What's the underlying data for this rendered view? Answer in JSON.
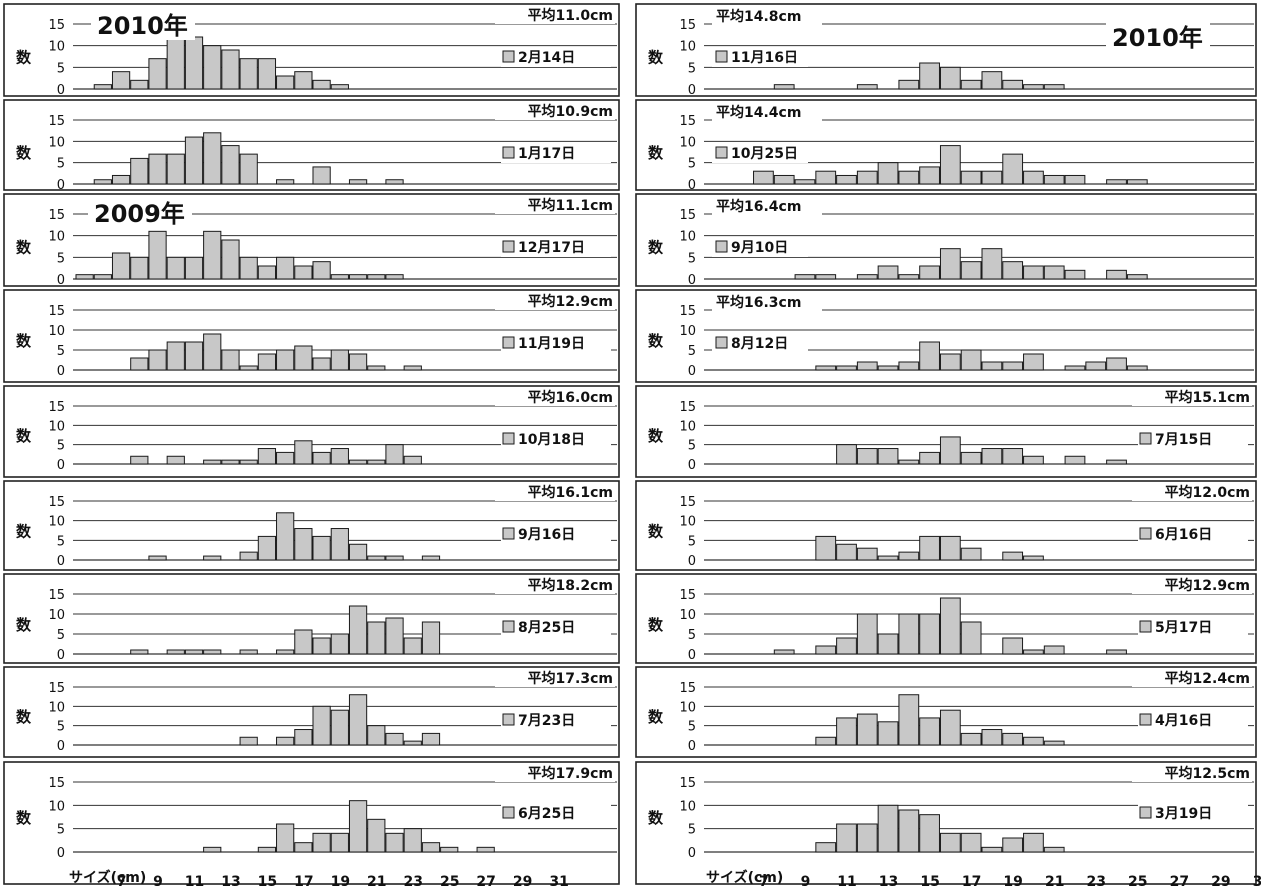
{
  "figure": {
    "ylabel": "数",
    "xaxis_title": "サイズ(cm)",
    "y_ticks": [
      "15",
      "10",
      "5",
      "0"
    ],
    "x_ticks": [
      "7",
      "9",
      "11",
      "13",
      "15",
      "17",
      "19",
      "21",
      "23",
      "25",
      "27",
      "29",
      "31"
    ],
    "bar_color": "#c8c8c8"
  },
  "chart_data": [
    {
      "type": "bar",
      "date": "2月14日",
      "mean": "平均11.0cm",
      "year": "2010年",
      "ylim": [
        0,
        15
      ],
      "x": [
        6,
        7,
        8,
        9,
        10,
        11,
        12,
        13,
        14,
        15,
        16,
        17,
        18,
        19
      ],
      "values": [
        1,
        4,
        2,
        7,
        12,
        12,
        10,
        9,
        7,
        7,
        3,
        4,
        2,
        1
      ]
    },
    {
      "type": "bar",
      "date": "1月17日",
      "mean": "平均10.9cm",
      "ylim": [
        0,
        15
      ],
      "x": [
        6,
        7,
        8,
        9,
        10,
        11,
        12,
        13,
        14,
        16,
        18,
        20,
        22
      ],
      "values": [
        1,
        2,
        6,
        7,
        7,
        11,
        12,
        9,
        7,
        1,
        4,
        1,
        1
      ]
    },
    {
      "type": "bar",
      "date": "12月17日",
      "mean": "平均11.1cm",
      "year": "2009年",
      "ylim": [
        0,
        15
      ],
      "x": [
        5,
        6,
        7,
        8,
        9,
        10,
        11,
        12,
        13,
        14,
        15,
        16,
        17,
        18,
        19,
        20,
        21,
        22
      ],
      "values": [
        1,
        1,
        6,
        5,
        11,
        5,
        5,
        11,
        9,
        5,
        3,
        5,
        3,
        4,
        1,
        1,
        1,
        1
      ]
    },
    {
      "type": "bar",
      "date": "11月19日",
      "mean": "平均12.9cm",
      "ylim": [
        0,
        15
      ],
      "x": [
        8,
        9,
        10,
        11,
        12,
        13,
        14,
        15,
        16,
        17,
        18,
        19,
        20,
        21,
        23
      ],
      "values": [
        3,
        5,
        7,
        7,
        9,
        5,
        1,
        4,
        5,
        6,
        3,
        5,
        4,
        1,
        1
      ]
    },
    {
      "type": "bar",
      "date": "10月18日",
      "mean": "平均16.0cm",
      "ylim": [
        0,
        15
      ],
      "x": [
        8,
        10,
        12,
        13,
        14,
        15,
        16,
        17,
        18,
        19,
        20,
        21,
        22,
        23
      ],
      "values": [
        2,
        2,
        1,
        1,
        1,
        4,
        3,
        6,
        3,
        4,
        1,
        1,
        5,
        2
      ]
    },
    {
      "type": "bar",
      "date": "9月16日",
      "mean": "平均16.1cm",
      "ylim": [
        0,
        15
      ],
      "x": [
        9,
        12,
        14,
        15,
        16,
        17,
        18,
        19,
        20,
        21,
        22,
        24
      ],
      "values": [
        1,
        1,
        2,
        6,
        12,
        8,
        6,
        8,
        4,
        1,
        1,
        1
      ]
    },
    {
      "type": "bar",
      "date": "8月25日",
      "mean": "平均18.2cm",
      "ylim": [
        0,
        15
      ],
      "x": [
        8,
        10,
        11,
        12,
        14,
        16,
        17,
        18,
        19,
        20,
        21,
        22,
        23,
        24
      ],
      "values": [
        1,
        1,
        1,
        1,
        1,
        1,
        6,
        4,
        5,
        12,
        8,
        9,
        4,
        8
      ]
    },
    {
      "type": "bar",
      "date": "7月23日",
      "mean": "平均17.3cm",
      "ylim": [
        0,
        15
      ],
      "x": [
        14,
        16,
        17,
        18,
        19,
        20,
        21,
        22,
        23,
        24
      ],
      "values": [
        2,
        2,
        4,
        10,
        9,
        13,
        5,
        3,
        1,
        3
      ]
    },
    {
      "type": "bar",
      "date": "6月25日",
      "mean": "平均17.9cm",
      "ylim": [
        0,
        15
      ],
      "x": [
        12,
        15,
        16,
        17,
        18,
        19,
        20,
        21,
        22,
        23,
        24,
        25,
        27
      ],
      "values": [
        1,
        1,
        6,
        2,
        4,
        4,
        11,
        7,
        4,
        5,
        2,
        1,
        1
      ]
    },
    {
      "type": "bar",
      "date": "11月16日",
      "mean": "平均14.8cm",
      "year": "2010年",
      "ylim": [
        0,
        15
      ],
      "x": [
        8,
        12,
        14,
        15,
        16,
        17,
        18,
        19,
        20,
        21
      ],
      "values": [
        1,
        1,
        2,
        6,
        5,
        2,
        4,
        2,
        1,
        1
      ]
    },
    {
      "type": "bar",
      "date": "10月25日",
      "mean": "平均14.4cm",
      "ylim": [
        0,
        15
      ],
      "x": [
        7,
        8,
        9,
        10,
        11,
        12,
        13,
        14,
        15,
        16,
        17,
        18,
        19,
        20,
        21,
        22,
        24,
        25
      ],
      "values": [
        3,
        2,
        1,
        3,
        2,
        3,
        5,
        3,
        4,
        9,
        3,
        3,
        7,
        3,
        2,
        2,
        1,
        1
      ]
    },
    {
      "type": "bar",
      "date": "9月10日",
      "mean": "平均16.4cm",
      "ylim": [
        0,
        15
      ],
      "x": [
        9,
        10,
        12,
        13,
        14,
        15,
        16,
        17,
        18,
        19,
        20,
        21,
        22,
        24,
        25
      ],
      "values": [
        1,
        1,
        1,
        3,
        1,
        3,
        7,
        4,
        7,
        4,
        3,
        3,
        2,
        2,
        1
      ]
    },
    {
      "type": "bar",
      "date": "8月12日",
      "mean": "平均16.3cm",
      "ylim": [
        0,
        15
      ],
      "x": [
        10,
        11,
        12,
        13,
        14,
        15,
        16,
        17,
        18,
        19,
        20,
        22,
        23,
        24,
        25
      ],
      "values": [
        1,
        1,
        2,
        1,
        2,
        7,
        4,
        5,
        2,
        2,
        4,
        1,
        2,
        3,
        1
      ]
    },
    {
      "type": "bar",
      "date": "7月15日",
      "mean": "平均15.1cm",
      "ylim": [
        0,
        15
      ],
      "x": [
        11,
        12,
        13,
        14,
        15,
        16,
        17,
        18,
        19,
        20,
        22,
        24
      ],
      "values": [
        5,
        4,
        4,
        1,
        3,
        7,
        3,
        4,
        4,
        2,
        2,
        1
      ]
    },
    {
      "type": "bar",
      "date": "6月16日",
      "mean": "平均12.0cm",
      "ylim": [
        0,
        15
      ],
      "x": [
        10,
        11,
        12,
        13,
        14,
        15,
        16,
        17,
        19,
        20
      ],
      "values": [
        6,
        4,
        3,
        1,
        2,
        6,
        6,
        3,
        2,
        1
      ]
    },
    {
      "type": "bar",
      "date": "5月17日",
      "mean": "平均12.9cm",
      "ylim": [
        0,
        15
      ],
      "x": [
        8,
        10,
        11,
        12,
        13,
        14,
        15,
        16,
        17,
        19,
        20,
        21,
        24
      ],
      "values": [
        1,
        2,
        4,
        10,
        5,
        10,
        10,
        14,
        8,
        4,
        1,
        2,
        1
      ]
    },
    {
      "type": "bar",
      "date": "4月16日",
      "mean": "平均12.4cm",
      "ylim": [
        0,
        15
      ],
      "x": [
        10,
        11,
        12,
        13,
        14,
        15,
        16,
        17,
        18,
        19,
        20,
        21
      ],
      "values": [
        2,
        7,
        8,
        6,
        13,
        7,
        9,
        3,
        4,
        3,
        2,
        1
      ]
    },
    {
      "type": "bar",
      "date": "3月19日",
      "mean": "平均12.5cm",
      "ylim": [
        0,
        15
      ],
      "x": [
        10,
        11,
        12,
        13,
        14,
        15,
        16,
        17,
        18,
        19,
        20,
        21
      ],
      "values": [
        2,
        6,
        6,
        10,
        9,
        8,
        4,
        4,
        1,
        3,
        4,
        1
      ]
    }
  ]
}
